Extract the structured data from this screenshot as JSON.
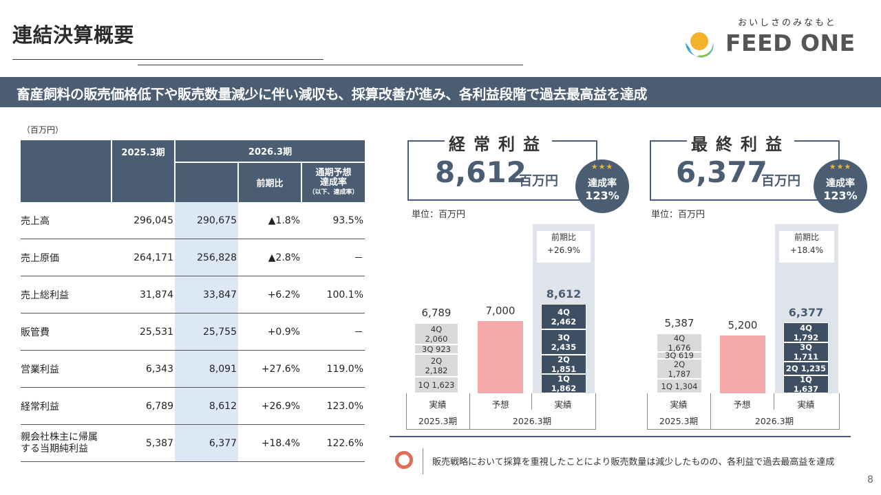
{
  "slide": {
    "title": "連結決算概要",
    "banner": "畜産飼料の販売価格低下や販売数量減少に伴い減収も、採算改善が進み、各利益段階で過去最高益を達成",
    "page_number": "8"
  },
  "logo": {
    "tagline": "おいしさのみなもと",
    "name": "FEED ONE",
    "colors": [
      "#f2b229",
      "#3aa6d9",
      "#8bc34a"
    ]
  },
  "table": {
    "unit": "（百万円）",
    "headers": {
      "fy2025": "2025.3期",
      "fy2026": "2026.3期",
      "yoy": "前期比",
      "achieve_line1": "通期予想",
      "achieve_line2": "達成率",
      "achieve_line3": "（以下、達成率）"
    },
    "rows": [
      {
        "label": "売上高",
        "fy2025": "296,045",
        "fy2026": "290,675",
        "yoy": "▲1.8%",
        "achieve": "93.5%"
      },
      {
        "label": "売上原価",
        "fy2025": "264,171",
        "fy2026": "256,828",
        "yoy": "▲2.8%",
        "achieve": "－"
      },
      {
        "label": "売上総利益",
        "fy2025": "31,874",
        "fy2026": "33,847",
        "yoy": "+6.2%",
        "achieve": "100.1%"
      },
      {
        "label": "販管費",
        "fy2025": "25,531",
        "fy2026": "25,755",
        "yoy": "+0.9%",
        "achieve": "－"
      },
      {
        "label": "営業利益",
        "fy2025": "6,343",
        "fy2026": "8,091",
        "yoy": "+27.6%",
        "achieve": "119.0%"
      },
      {
        "label": "経常利益",
        "fy2025": "6,789",
        "fy2026": "8,612",
        "yoy": "+26.9%",
        "achieve": "123.0%"
      },
      {
        "label_line1": "親会社株主に帰属",
        "label_line2": "する当期純利益",
        "fy2025": "5,387",
        "fy2026": "6,377",
        "yoy": "+18.4%",
        "achieve": "122.6%"
      }
    ]
  },
  "ordinary": {
    "title": "経常利益",
    "value": "8,612",
    "unit": "百万円",
    "badge_stars": "★★★",
    "badge_label": "達成率",
    "badge_value": "123%",
    "sub_unit": "単位：百万円",
    "yoy_label": "前期比",
    "yoy_value": "+26.9%"
  },
  "net": {
    "title": "最終利益",
    "value": "6,377",
    "unit": "百万円",
    "badge_stars": "★★★",
    "badge_label": "達成率",
    "badge_value": "123%",
    "sub_unit": "単位：百万円",
    "yoy_label": "前期比",
    "yoy_value": "+18.4%"
  },
  "axis": {
    "actual": "実績",
    "forecast": "予想",
    "fy2025": "2025.3期",
    "fy2026": "2026.3期"
  },
  "chart_data": [
    {
      "type": "bar",
      "title": "経常利益",
      "ylabel": "単位：百万円",
      "categories": [
        "2025.3期 実績",
        "2026.3期 予想",
        "2026.3期 実績"
      ],
      "totals": [
        "6,789",
        "7,000",
        "8,612"
      ],
      "totals_num": [
        6789,
        7000,
        8612
      ],
      "stacks": [
        [
          {
            "q": "1Q",
            "v": 1623,
            "t": "1,623"
          },
          {
            "q": "2Q",
            "v": 2182,
            "t": "2,182"
          },
          {
            "q": "3Q",
            "v": 923,
            "t": "923"
          },
          {
            "q": "4Q",
            "v": 2060,
            "t": "2,060"
          }
        ],
        [
          {
            "q": "",
            "v": 7000,
            "t": ""
          }
        ],
        [
          {
            "q": "1Q",
            "v": 1862,
            "t": "1,862"
          },
          {
            "q": "2Q",
            "v": 1851,
            "t": "1,851"
          },
          {
            "q": "3Q",
            "v": 2435,
            "t": "2,435"
          },
          {
            "q": "4Q",
            "v": 2462,
            "t": "2,462"
          }
        ]
      ],
      "colors": {
        "prior": "#d9d9d9",
        "forecast": "#f5aaaa",
        "current": "#3e4f64"
      }
    },
    {
      "type": "bar",
      "title": "最終利益",
      "ylabel": "単位：百万円",
      "categories": [
        "2025.3期 実績",
        "2026.3期 予想",
        "2026.3期 実績"
      ],
      "totals": [
        "5,387",
        "5,200",
        "6,377"
      ],
      "totals_num": [
        5387,
        5200,
        6377
      ],
      "stacks": [
        [
          {
            "q": "1Q",
            "v": 1304,
            "t": "1,304"
          },
          {
            "q": "2Q",
            "v": 1787,
            "t": "1,787"
          },
          {
            "q": "3Q",
            "v": 619,
            "t": "619"
          },
          {
            "q": "4Q",
            "v": 1676,
            "t": "1,676"
          }
        ],
        [
          {
            "q": "",
            "v": 5200,
            "t": ""
          }
        ],
        [
          {
            "q": "1Q",
            "v": 1637,
            "t": "1,637"
          },
          {
            "q": "2Q",
            "v": 1235,
            "t": "1,235"
          },
          {
            "q": "3Q",
            "v": 1711,
            "t": "1,711"
          },
          {
            "q": "4Q",
            "v": 1792,
            "t": "1,792"
          }
        ]
      ],
      "colors": {
        "prior": "#d9d9d9",
        "forecast": "#f5aaaa",
        "current": "#3e4f64"
      }
    }
  ],
  "footer": {
    "text": "販売戦略において採算を重視したことにより販売数量は減少したものの、各利益で過去最高益を達成"
  }
}
